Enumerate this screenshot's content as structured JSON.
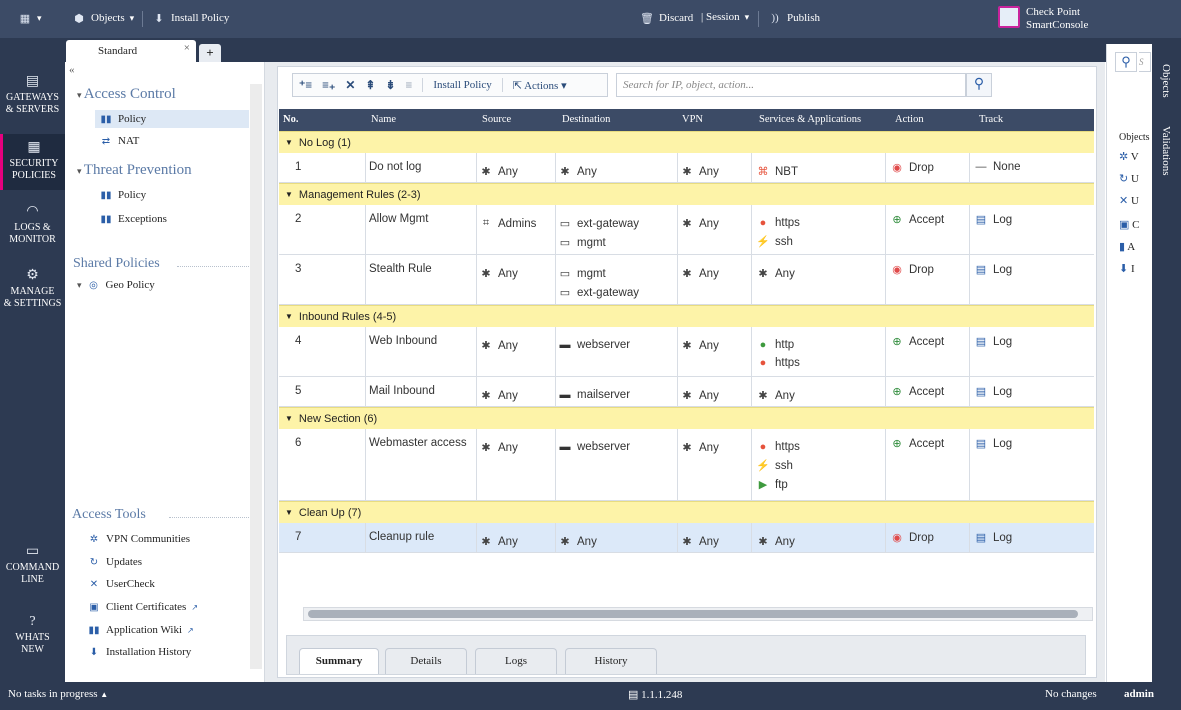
{
  "topbar": {
    "menu_icon": "app-menu-icon",
    "objects_label": "Objects",
    "install_label": "Install Policy",
    "discard_label": "Discard",
    "session_label": "Session",
    "publish_label": "Publish",
    "brand_line1": "Check Point",
    "brand_line2": "SmartConsole"
  },
  "tabs": {
    "active_label": "Standard",
    "close_glyph": "×",
    "new_glyph": "+"
  },
  "leftnav": [
    {
      "label1": "GATEWAYS",
      "label2": "& SERVERS",
      "icon": "server-icon"
    },
    {
      "label1": "SECURITY",
      "label2": "POLICIES",
      "icon": "shield-grid-icon"
    },
    {
      "label1": "LOGS &",
      "label2": "MONITOR",
      "icon": "gauge-icon"
    },
    {
      "label1": "MANAGE",
      "label2": "& SETTINGS",
      "icon": "gear-icon"
    },
    {
      "label1": "COMMAND",
      "label2": "LINE",
      "icon": "terminal-icon"
    },
    {
      "label1": "WHATS",
      "label2": "NEW",
      "icon": "question-icon"
    }
  ],
  "tree": {
    "collapse_glyph": "«",
    "access_control": "Access Control",
    "ac_policy": "Policy",
    "ac_nat": "NAT",
    "threat_prevention": "Threat Prevention",
    "tp_policy": "Policy",
    "tp_exceptions": "Exceptions",
    "shared_policies": "Shared Policies",
    "geo_policy": "Geo Policy",
    "access_tools": "Access Tools",
    "tools": [
      "VPN Communities",
      "Updates",
      "UserCheck",
      "Client Certificates",
      "Application Wiki",
      "Installation History"
    ]
  },
  "toolbar": {
    "install_label": "Install Policy",
    "actions_label": "Actions",
    "search_placeholder": "Search for IP, object, action..."
  },
  "columns": [
    "No.",
    "Name",
    "Source",
    "Destination",
    "VPN",
    "Services & Applications",
    "Action",
    "Track"
  ],
  "sections": [
    {
      "label": "No Log (1)"
    },
    {
      "label": "Management Rules (2-3)"
    },
    {
      "label": "Inbound Rules (4-5)"
    },
    {
      "label": "New Section (6)"
    },
    {
      "label": "Clean Up (7)"
    }
  ],
  "rules": [
    {
      "no": "1",
      "name": "Do not log",
      "source": [
        "Any"
      ],
      "destination": [
        "Any"
      ],
      "vpn": "Any",
      "services": [
        "NBT"
      ],
      "action": "Drop",
      "track": "None"
    },
    {
      "no": "2",
      "name": "Allow Mgmt",
      "source": [
        "Admins"
      ],
      "destination": [
        "ext-gateway",
        "mgmt"
      ],
      "vpn": "Any",
      "services": [
        "https",
        "ssh"
      ],
      "action": "Accept",
      "track": "Log"
    },
    {
      "no": "3",
      "name": "Stealth Rule",
      "source": [
        "Any"
      ],
      "destination": [
        "mgmt",
        "ext-gateway"
      ],
      "vpn": "Any",
      "services": [
        "Any"
      ],
      "action": "Drop",
      "track": "Log"
    },
    {
      "no": "4",
      "name": "Web Inbound",
      "source": [
        "Any"
      ],
      "destination": [
        "webserver"
      ],
      "vpn": "Any",
      "services": [
        "http",
        "https"
      ],
      "action": "Accept",
      "track": "Log"
    },
    {
      "no": "5",
      "name": "Mail Inbound",
      "source": [
        "Any"
      ],
      "destination": [
        "mailserver"
      ],
      "vpn": "Any",
      "services": [
        "Any"
      ],
      "action": "Accept",
      "track": "Log"
    },
    {
      "no": "6",
      "name": "Webmaster access",
      "source": [
        "Any"
      ],
      "destination": [
        "webserver"
      ],
      "vpn": "Any",
      "services": [
        "https",
        "ssh",
        "ftp"
      ],
      "action": "Accept",
      "track": "Log"
    },
    {
      "no": "7",
      "name": "Cleanup rule",
      "source": [
        "Any"
      ],
      "destination": [
        "Any"
      ],
      "vpn": "Any",
      "services": [
        "Any"
      ],
      "action": "Drop",
      "track": "Log"
    }
  ],
  "bottom_tabs": [
    "Summary",
    "Details",
    "Logs",
    "History"
  ],
  "right": {
    "objects_label": "Objects",
    "validations_label": "Validations",
    "partial_label": "Objects",
    "letters": [
      "V",
      "U",
      "U",
      "C",
      "A",
      "I"
    ]
  },
  "status": {
    "tasks": "No tasks in progress",
    "server": "1.1.1.248",
    "changes": "No changes",
    "user": "admin"
  },
  "colors": {
    "nav_bg": "#2d3a52",
    "section_bg": "#fdf3a8",
    "drop": "#e04b4b",
    "accept": "#2e8b3a",
    "accent": "#e6007e"
  }
}
